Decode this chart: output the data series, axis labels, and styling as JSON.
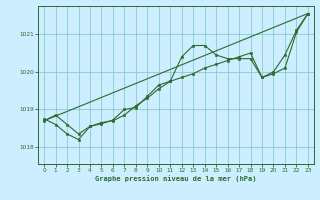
{
  "title": "Graphe pression niveau de la mer (hPa)",
  "background_color": "#cceeff",
  "plot_bg_color": "#cceeff",
  "line_color": "#2d6a2d",
  "marker_color": "#2d6a2d",
  "grid_color": "#88cccc",
  "xlim": [
    -0.5,
    23.5
  ],
  "ylim": [
    1017.55,
    1021.75
  ],
  "xticks": [
    0,
    1,
    2,
    3,
    4,
    5,
    6,
    7,
    8,
    9,
    10,
    11,
    12,
    13,
    14,
    15,
    16,
    17,
    18,
    19,
    20,
    21,
    22,
    23
  ],
  "yticks": [
    1018,
    1019,
    1020,
    1021
  ],
  "series1_x": [
    0,
    1,
    2,
    3,
    4,
    5,
    6,
    7,
    8,
    9,
    10,
    11,
    12,
    13,
    14,
    15,
    16,
    17,
    18,
    19,
    20,
    21,
    22,
    23
  ],
  "series1_y": [
    1018.7,
    1018.85,
    1018.6,
    1018.35,
    1018.55,
    1018.62,
    1018.72,
    1019.0,
    1019.05,
    1019.35,
    1019.65,
    1019.75,
    1020.4,
    1020.7,
    1020.7,
    1020.45,
    1020.35,
    1020.35,
    1020.35,
    1019.85,
    1020.0,
    1020.45,
    1021.1,
    1021.55
  ],
  "series2_x": [
    0,
    1,
    2,
    3,
    4,
    5,
    6,
    7,
    8,
    9,
    10,
    11,
    12,
    13,
    14,
    15,
    16,
    17,
    18,
    19,
    20,
    21,
    22,
    23
  ],
  "series2_y": [
    1018.75,
    1018.6,
    1018.35,
    1018.2,
    1018.55,
    1018.65,
    1018.7,
    1018.85,
    1019.1,
    1019.3,
    1019.55,
    1019.75,
    1019.85,
    1019.95,
    1020.1,
    1020.2,
    1020.3,
    1020.4,
    1020.5,
    1019.85,
    1019.95,
    1020.1,
    1021.05,
    1021.55
  ],
  "trend_x": [
    0,
    23
  ],
  "trend_y": [
    1018.7,
    1021.55
  ]
}
